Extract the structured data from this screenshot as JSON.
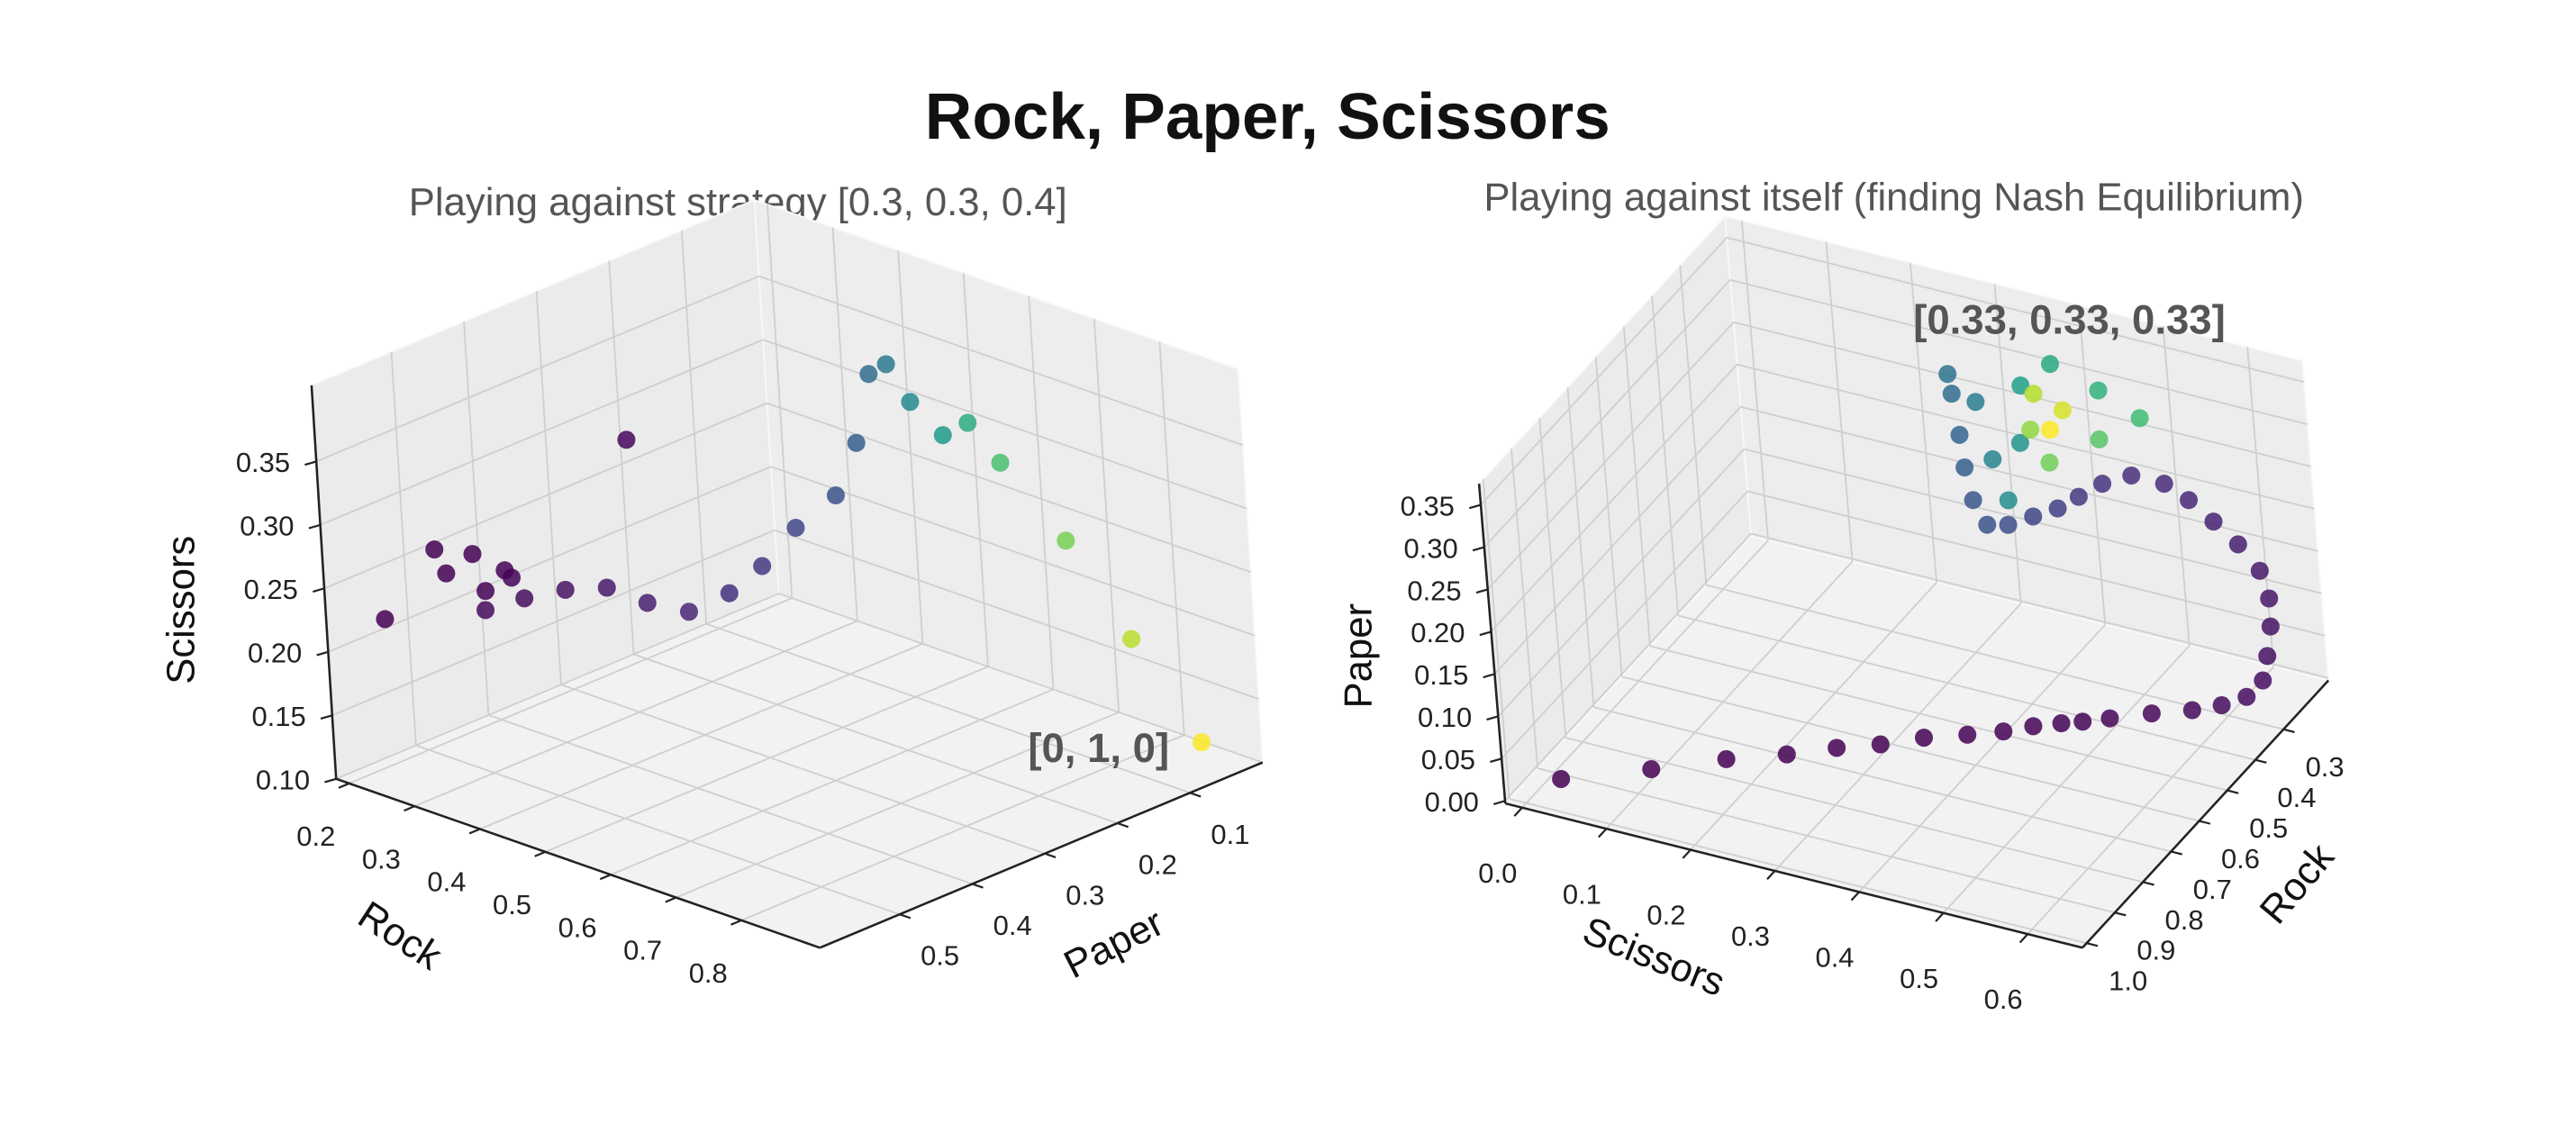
{
  "title": "Rock, Paper, Scissors",
  "chart_data": [
    {
      "type": "scatter3d",
      "title": "Playing against strategy [0.3, 0.3, 0.4]",
      "annotation": "[0, 1, 0]",
      "xlabel": "Rock",
      "ylabel": "Paper",
      "zlabel": "Scissors",
      "colormap": "viridis",
      "xlim": [
        0.18,
        0.92
      ],
      "ylim": [
        0,
        0.61
      ],
      "zlim": [
        0.1,
        0.41
      ],
      "xticks": [
        0.2,
        0.3,
        0.4,
        0.5,
        0.6,
        0.7,
        0.8
      ],
      "yticks": [
        0.1,
        0.2,
        0.3,
        0.4,
        0.5
      ],
      "zticks": [
        {
          "value": 0.1,
          "label": "0.10"
        },
        0.15,
        {
          "value": 0.2,
          "label": "0.20"
        },
        0.25,
        {
          "value": 0.3,
          "label": "0.30"
        },
        0.35
      ],
      "x": [
        0.201,
        0.285,
        0.301,
        0.344,
        0.361,
        0.393,
        0.403,
        0.525,
        0.324,
        0.364,
        0.415,
        0.466,
        0.507,
        0.549,
        0.6,
        0.633,
        0.66,
        0.691,
        0.671,
        0.591,
        0.583,
        0.603,
        0.637,
        0.662,
        0.688,
        0.755,
        0.819,
        0.886
      ],
      "y": [
        0.549,
        0.549,
        0.549,
        0.549,
        0.549,
        0.549,
        0.549,
        0.488,
        0.519,
        0.5,
        0.488,
        0.476,
        0.458,
        0.439,
        0.427,
        0.409,
        0.384,
        0.354,
        0.305,
        0.214,
        0.183,
        0.171,
        0.159,
        0.146,
        0.128,
        0.104,
        0.079,
        0.051
      ],
      "z": [
        0.215,
        0.285,
        0.269,
        0.292,
        0.266,
        0.288,
        0.284,
        0.4,
        0.237,
        0.249,
        0.262,
        0.27,
        0.261,
        0.257,
        0.278,
        0.301,
        0.33,
        0.354,
        0.38,
        0.398,
        0.397,
        0.368,
        0.345,
        0.356,
        0.325,
        0.27,
        0.198,
        0.122
      ]
    },
    {
      "type": "scatter3d",
      "title": "Playing against itself (finding Nash Equilibrium)",
      "annotation": "[0.33, 0.33, 0.33]",
      "xlabel": "Scissors",
      "ylabel": "Rock",
      "zlabel": "Paper",
      "colormap": "viridis",
      "xlim": [
        -0.02,
        0.665
      ],
      "ylim": [
        0.14,
        1.015
      ],
      "zlim": [
        -0.003,
        0.375
      ],
      "xticks": [
        {
          "value": 0,
          "label": "0.0"
        },
        0.1,
        0.2,
        0.3,
        0.4,
        0.5,
        0.6
      ],
      "yticks": [
        0.3,
        0.4,
        0.5,
        0.6,
        0.7,
        0.8,
        0.9,
        {
          "value": 1,
          "label": "1.0"
        }
      ],
      "zticks": [
        {
          "value": 0,
          "label": "0.00"
        },
        0.05,
        {
          "value": 0.1,
          "label": "0.10"
        },
        0.15,
        {
          "value": 0.2,
          "label": "0.20"
        },
        0.25,
        {
          "value": 0.3,
          "label": "0.30"
        },
        0.35
      ],
      "x": [
        0.028,
        0.108,
        0.174,
        0.228,
        0.272,
        0.311,
        0.349,
        0.388,
        0.42,
        0.446,
        0.471,
        0.49,
        0.514,
        0.551,
        0.587,
        0.613,
        0.634,
        0.646,
        0.646,
        0.644,
        0.638,
        0.625,
        0.601,
        0.575,
        0.549,
        0.524,
        0.493,
        0.468,
        0.449,
        0.432,
        0.411,
        0.39,
        0.371,
        0.354,
        0.341,
        0.331,
        0.317,
        0.31,
        0.34,
        0.365,
        0.386,
        0.387,
        0.378,
        0.401,
        0.449,
        0.491,
        0.458,
        0.417,
        0.394,
        0.391,
        0.42,
        0.412
      ],
      "y": [
        0.956,
        0.874,
        0.804,
        0.751,
        0.705,
        0.666,
        0.625,
        0.587,
        0.555,
        0.526,
        0.501,
        0.482,
        0.457,
        0.419,
        0.383,
        0.355,
        0.328,
        0.303,
        0.282,
        0.258,
        0.239,
        0.227,
        0.226,
        0.23,
        0.235,
        0.244,
        0.265,
        0.295,
        0.324,
        0.35,
        0.376,
        0.403,
        0.42,
        0.414,
        0.398,
        0.379,
        0.356,
        0.345,
        0.342,
        0.369,
        0.385,
        0.334,
        0.293,
        0.253,
        0.232,
        0.217,
        0.266,
        0.324,
        0.316,
        0.288,
        0.276,
        0.3
      ],
      "z": [
        0.0165,
        0.0185,
        0.0215,
        0.0214,
        0.0235,
        0.0231,
        0.0257,
        0.0253,
        0.0255,
        0.0277,
        0.0285,
        0.0283,
        0.0291,
        0.0304,
        0.0303,
        0.0324,
        0.0378,
        0.0511,
        0.0724,
        0.0982,
        0.1229,
        0.1482,
        0.173,
        0.195,
        0.2157,
        0.232,
        0.2416,
        0.2366,
        0.2267,
        0.2182,
        0.2128,
        0.2074,
        0.209,
        0.2318,
        0.2613,
        0.2906,
        0.3273,
        0.345,
        0.3183,
        0.2664,
        0.2291,
        0.2788,
        0.3295,
        0.3461,
        0.3193,
        0.2916,
        0.2759,
        0.2593,
        0.2897,
        0.3213,
        0.3046,
        0.2882
      ]
    }
  ]
}
